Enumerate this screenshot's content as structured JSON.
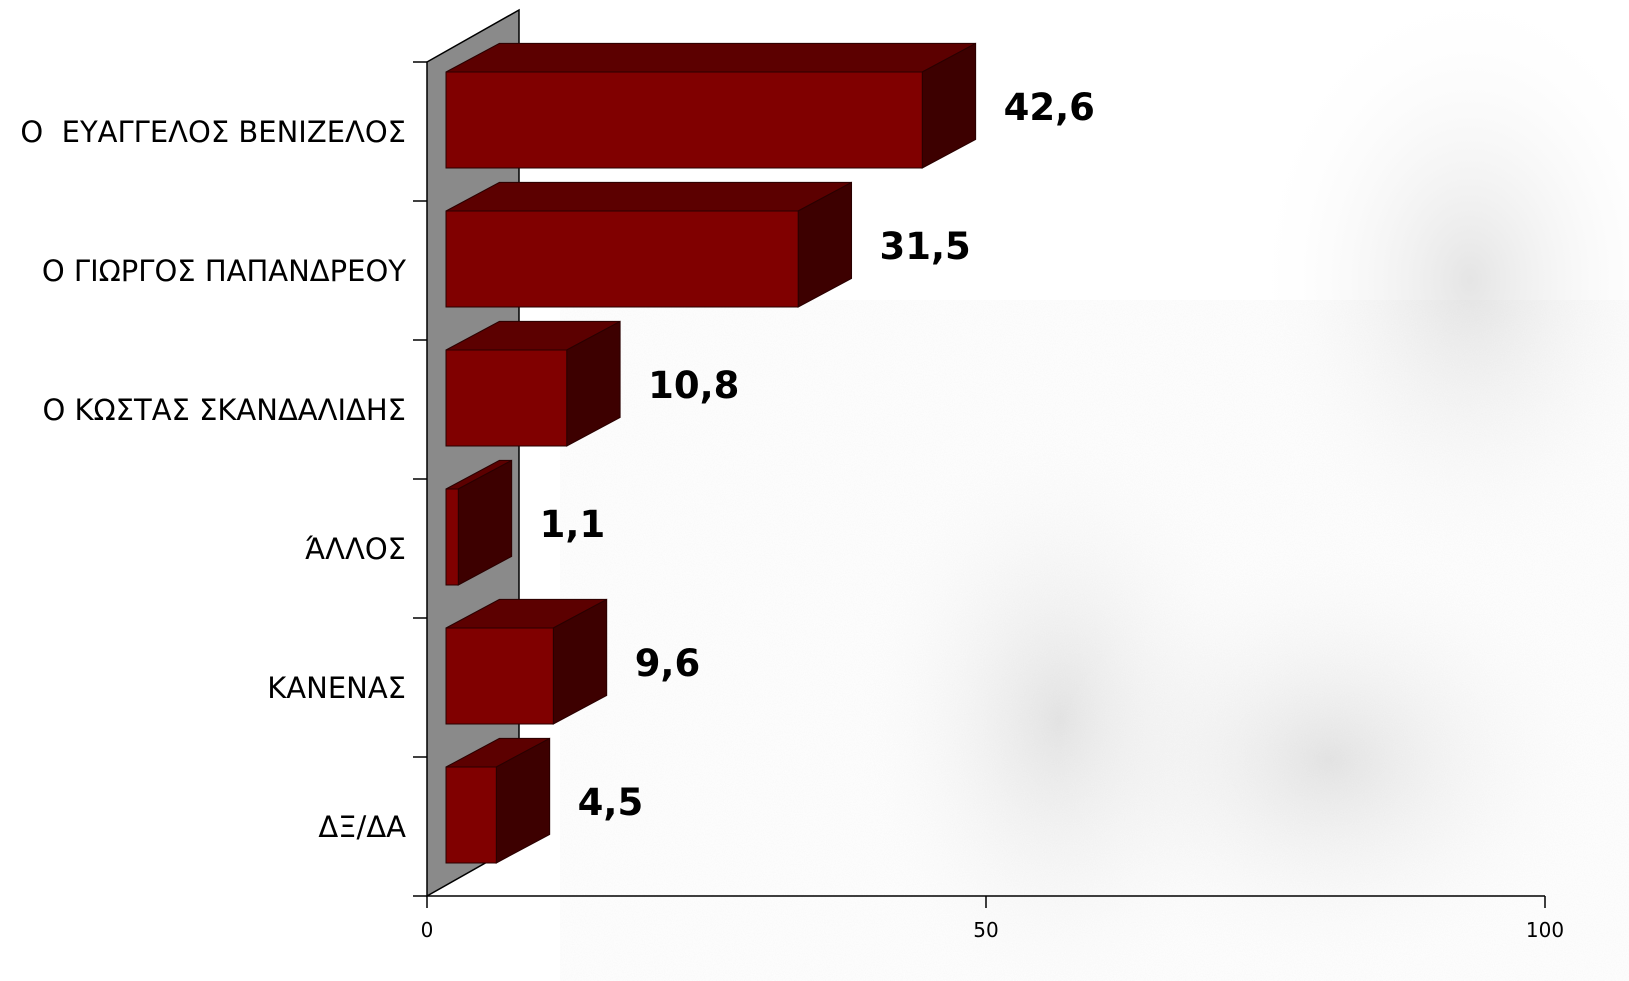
{
  "chart_data": {
    "type": "bar",
    "orientation": "horizontal",
    "style": "3d",
    "categories": [
      "Ο  ΕΥΑΓΓΕΛΟΣ ΒΕΝΙΖΕΛΟΣ",
      "Ο ΓΙΩΡΓΟΣ ΠΑΠΑΝΔΡΕΟΥ",
      "Ο ΚΩΣΤΑΣ ΣΚΑΝΔΑΛΙΔΗΣ",
      "ΆΛΛΟΣ",
      "ΚΑΝΕΝΑΣ",
      "ΔΞ/ΔΑ"
    ],
    "values": [
      42.6,
      31.5,
      10.8,
      1.1,
      9.6,
      4.5
    ],
    "data_labels": [
      "42,6",
      "31,5",
      "10,8",
      "1,1",
      "9,6",
      "4,5"
    ],
    "xlim": [
      0,
      100
    ],
    "xticks": [
      "0",
      "50",
      "100"
    ],
    "grid": false,
    "legend": "none",
    "colors": {
      "bar_front": "#800000",
      "bar_top": "#5c0000",
      "bar_side": "#3d0000",
      "back_wall": "#8a8a8a"
    }
  }
}
